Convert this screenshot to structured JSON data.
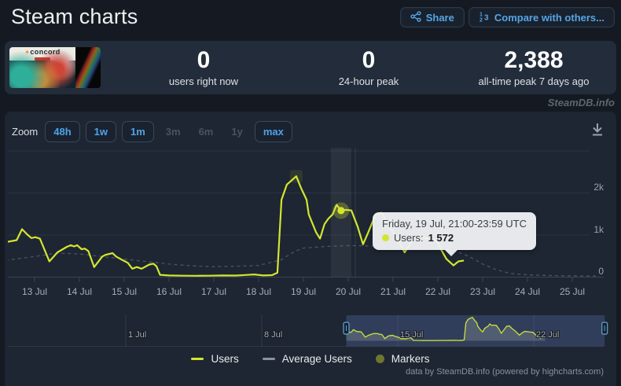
{
  "page": {
    "title": "Steam charts",
    "watermark": "SteamDB.info",
    "credit": "data by SteamDB.info (powered by highcharts.com)"
  },
  "header": {
    "share_label": "Share",
    "compare_label": "Compare with others...",
    "icons": {
      "share": "share-network-icon",
      "compare": "numbered-list-icon"
    }
  },
  "stats": {
    "game_logo_text": "concord",
    "items": [
      {
        "value": "0",
        "label": "users right now"
      },
      {
        "value": "0",
        "label": "24-hour peak"
      },
      {
        "value": "2,388",
        "label": "all-time peak 7 days ago"
      }
    ]
  },
  "toolbar": {
    "zoom_label": "Zoom",
    "download_icon": "download-arrow-icon",
    "ranges": [
      {
        "label": "48h",
        "enabled": true
      },
      {
        "label": "1w",
        "enabled": true
      },
      {
        "label": "1m",
        "enabled": true
      },
      {
        "label": "3m",
        "enabled": false
      },
      {
        "label": "6m",
        "enabled": false
      },
      {
        "label": "1y",
        "enabled": false
      },
      {
        "label": "max",
        "enabled": true
      }
    ]
  },
  "tooltip": {
    "title": "Friday, 19 Jul, 21:00-23:59 UTC",
    "series_label": "Users:",
    "value": "1 572"
  },
  "legend": [
    {
      "label": "Users",
      "swatch": "line",
      "color": "#d4e530"
    },
    {
      "label": "Average Users",
      "swatch": "line",
      "color": "#8d939b"
    },
    {
      "label": "Markers",
      "swatch": "circle",
      "color": "#6f772f"
    }
  ],
  "chart_data": {
    "type": "line",
    "title": "Steam charts — Concord concurrent players",
    "xlabel": "",
    "ylabel": "",
    "x_unit": "days relative to 13 Jul 00:00 UTC (≈3-hour resolution)",
    "ylim": [
      0,
      3000
    ],
    "yticks": [
      {
        "label": "0",
        "value": 0
      },
      {
        "label": "1k",
        "value": 1000
      },
      {
        "label": "2k",
        "value": 2000
      }
    ],
    "xticks": [
      "13 Jul",
      "14 Jul",
      "15 Jul",
      "16 Jul",
      "17 Jul",
      "18 Jul",
      "19 Jul",
      "20 Jul",
      "21 Jul",
      "22 Jul",
      "23 Jul",
      "24 Jul",
      "25 Jul"
    ],
    "grid": true,
    "legend_position": "bottom",
    "series": [
      {
        "name": "Users",
        "color": "#d4e530",
        "dashed": false,
        "points": [
          [
            -0.65,
            820
          ],
          [
            -0.4,
            870
          ],
          [
            -0.28,
            1130
          ],
          [
            -0.16,
            1000
          ],
          [
            -0.07,
            920
          ],
          [
            0.02,
            940
          ],
          [
            0.12,
            905
          ],
          [
            0.33,
            365
          ],
          [
            0.51,
            580
          ],
          [
            0.72,
            710
          ],
          [
            0.81,
            750
          ],
          [
            0.88,
            720
          ],
          [
            0.95,
            750
          ],
          [
            1.05,
            655
          ],
          [
            1.12,
            670
          ],
          [
            1.2,
            610
          ],
          [
            1.33,
            230
          ],
          [
            1.51,
            480
          ],
          [
            1.58,
            520
          ],
          [
            1.74,
            560
          ],
          [
            1.82,
            480
          ],
          [
            1.98,
            385
          ],
          [
            2.08,
            330
          ],
          [
            2.18,
            190
          ],
          [
            2.28,
            230
          ],
          [
            2.39,
            190
          ],
          [
            2.56,
            290
          ],
          [
            2.65,
            310
          ],
          [
            2.72,
            250
          ],
          [
            2.8,
            45
          ],
          [
            3.0,
            30
          ],
          [
            3.3,
            25
          ],
          [
            3.6,
            22
          ],
          [
            3.9,
            25
          ],
          [
            4.2,
            30
          ],
          [
            4.5,
            28
          ],
          [
            4.7,
            42
          ],
          [
            4.9,
            55
          ],
          [
            5.1,
            30
          ],
          [
            5.3,
            38
          ],
          [
            5.42,
            95
          ],
          [
            5.51,
            1830
          ],
          [
            5.63,
            2190
          ],
          [
            5.84,
            2388
          ],
          [
            5.95,
            2100
          ],
          [
            6.07,
            1830
          ],
          [
            6.12,
            1480
          ],
          [
            6.28,
            1060
          ],
          [
            6.37,
            905
          ],
          [
            6.47,
            1250
          ],
          [
            6.56,
            1385
          ],
          [
            6.65,
            1480
          ],
          [
            6.74,
            1710
          ],
          [
            6.84,
            1572
          ],
          [
            6.95,
            1590
          ],
          [
            7.07,
            1575
          ],
          [
            7.21,
            1190
          ],
          [
            7.33,
            770
          ],
          [
            7.44,
            1040
          ],
          [
            7.61,
            1480
          ],
          [
            7.74,
            1520
          ],
          [
            7.88,
            1250
          ],
          [
            8.04,
            1000
          ],
          [
            8.26,
            580
          ],
          [
            8.4,
            810
          ],
          [
            8.53,
            960
          ],
          [
            8.68,
            930
          ],
          [
            8.79,
            900
          ],
          [
            8.96,
            865
          ],
          [
            9.09,
            615
          ],
          [
            9.19,
            425
          ],
          [
            9.35,
            270
          ],
          [
            9.46,
            365
          ],
          [
            9.58,
            385
          ]
        ]
      },
      {
        "name": "Average Users",
        "color": "#8d939b",
        "dashed": true,
        "points": [
          [
            -0.65,
            390
          ],
          [
            0,
            480
          ],
          [
            0.5,
            560
          ],
          [
            1,
            540
          ],
          [
            1.5,
            480
          ],
          [
            2,
            420
          ],
          [
            2.5,
            360
          ],
          [
            3,
            300
          ],
          [
            3.5,
            260
          ],
          [
            4,
            240
          ],
          [
            4.5,
            250
          ],
          [
            5,
            270
          ],
          [
            5.5,
            400
          ],
          [
            5.8,
            600
          ],
          [
            6,
            680
          ],
          [
            6.5,
            720
          ],
          [
            7,
            740
          ],
          [
            7.5,
            730
          ],
          [
            8,
            715
          ],
          [
            8.5,
            700
          ],
          [
            9,
            670
          ],
          [
            9.3,
            650
          ],
          [
            9.7,
            480
          ],
          [
            10,
            300
          ],
          [
            10.3,
            170
          ],
          [
            10.6,
            80
          ],
          [
            11,
            45
          ],
          [
            11.5,
            28
          ],
          [
            12,
            20
          ],
          [
            12.6,
            15
          ]
        ]
      }
    ],
    "hovered_point": {
      "x": 6.84,
      "value": 1572,
      "series": "Users"
    },
    "hover_band_x": [
      6.61,
      7.07
    ],
    "peak_marker": {
      "x": 5.84,
      "value": 2388
    },
    "navigator": {
      "xticks": [
        {
          "label": "1 Jul",
          "d": -12
        },
        {
          "label": "8 Jul",
          "d": -5
        },
        {
          "label": "15 Jul",
          "d": 2
        },
        {
          "label": "22 Jul",
          "d": 9
        }
      ],
      "selection_x": [
        -0.65,
        12.65
      ]
    }
  }
}
